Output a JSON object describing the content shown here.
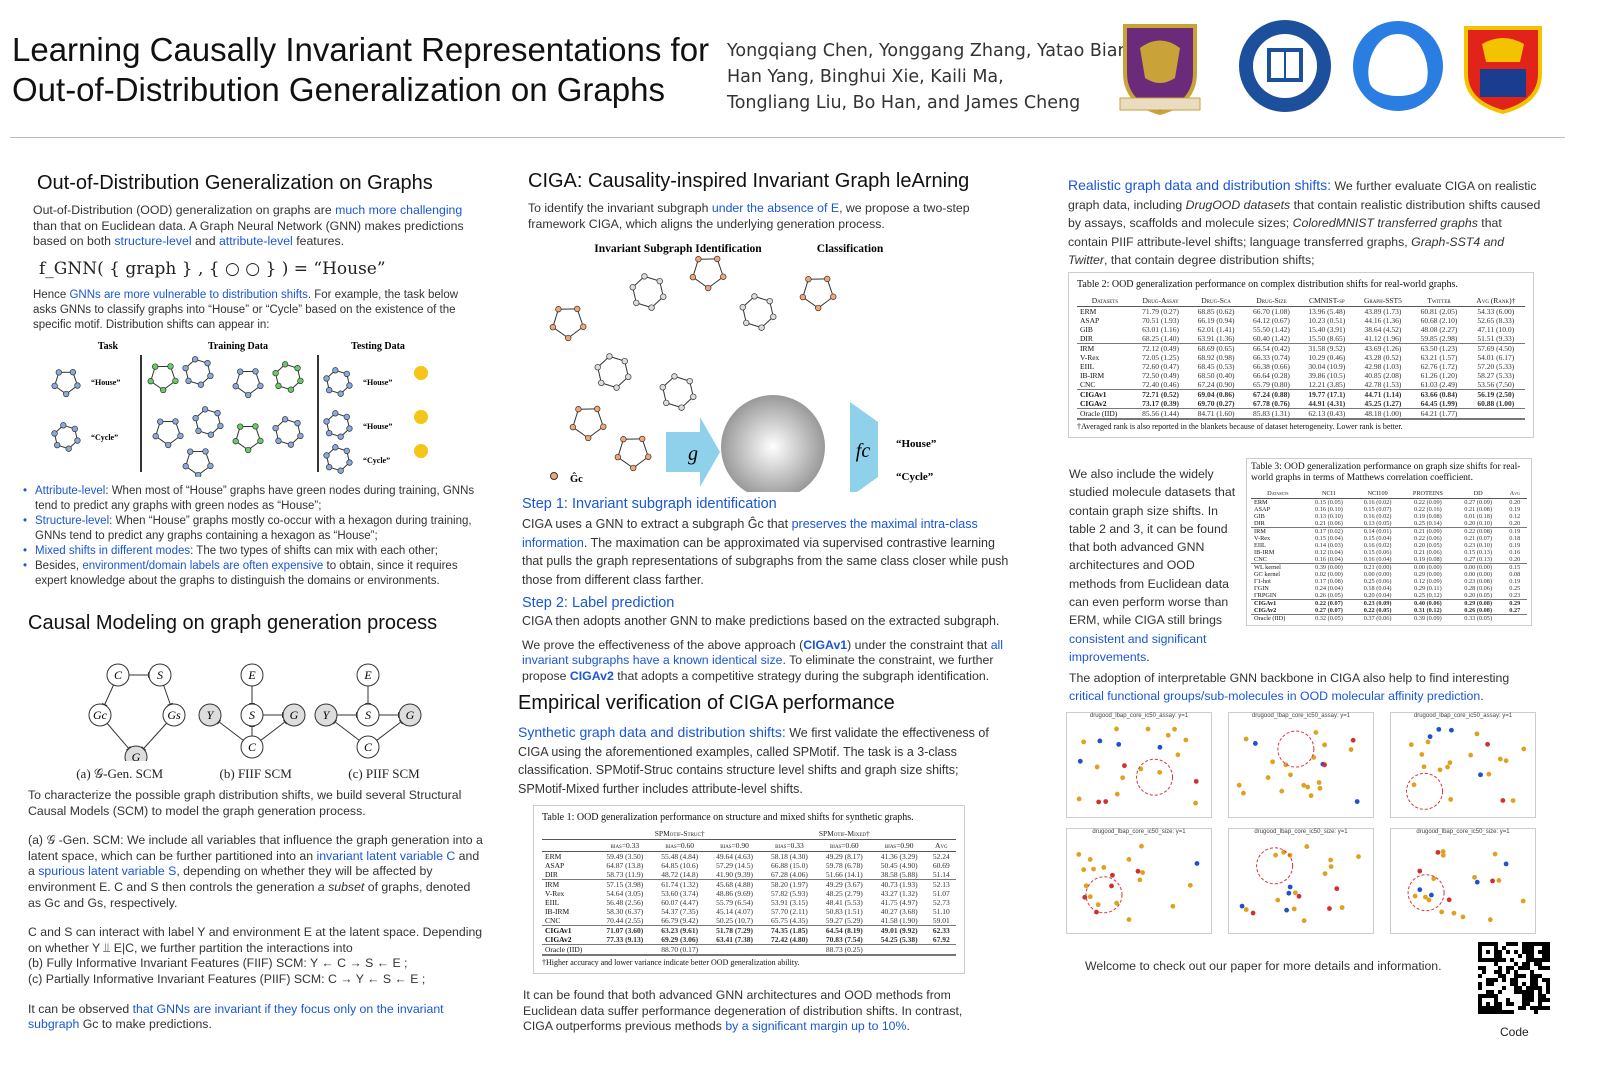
{
  "header": {
    "title_lines": [
      "Learning Causally Invariant Representations for",
      "Out-of-Distribution Generalization on Graphs"
    ],
    "author_lines": [
      "Yongqiang Chen, Yonggang Zhang, Yatao Bian,",
      "Han Yang, Binghui Xie, Kaili Ma,",
      "Tongliang Liu, Bo Han, and James Cheng"
    ],
    "logos": [
      "CUHK crest",
      "Hong Kong Baptist University seal",
      "Tencent AI Lab",
      "University of Sydney crest"
    ]
  },
  "colors": {
    "accent": "#1a56d6",
    "arrow": "#8fd0ea"
  },
  "ood": {
    "heading": "Out-of-Distribution Generalization on Graphs",
    "p1": [
      {
        "t": "Out-of-Distribution (OOD) generalization on graphs are "
      },
      {
        "t": "much more challenging",
        "c": "blue"
      },
      {
        "t": " than that on Euclidean data. A Graph Neural Network (GNN) makes predictions based on both "
      },
      {
        "t": "structure-level",
        "c": "blue"
      },
      {
        "t": " and "
      },
      {
        "t": "attribute-level",
        "c": "blue"
      },
      {
        "t": " features."
      }
    ],
    "formula": "f_GNN( { graph } , { ○ ○ } )   =   “House”",
    "p2": [
      {
        "t": "Hence "
      },
      {
        "t": "GNNs are more vulnerable to distribution shifts",
        "c": "blue"
      },
      {
        "t": ". For example, the task below asks GNNs to classify graphs into “House” or “Cycle” based on the existence of the specific motif. Distribution shifts can appear in:"
      }
    ],
    "fig_headers": [
      "Task",
      "Training Data",
      "Testing Data"
    ],
    "fig_labels": [
      "“House”",
      "“Cycle”",
      "“House”",
      "“House”",
      "“Cycle”"
    ],
    "bullets": [
      [
        {
          "t": "Attribute-level",
          "c": "blue"
        },
        {
          "t": ": When most of “House” graphs have green nodes during training, GNNs tend to predict any graphs with green nodes as “House”;"
        }
      ],
      [
        {
          "t": "Structure-level",
          "c": "blue"
        },
        {
          "t": ": When “House” graphs mostly co-occur with a hexagon during training, GNNs tend to predict any graphs containing a hexagon as “House”;"
        }
      ],
      [
        {
          "t": "Mixed shifts in different modes",
          "c": "blue"
        },
        {
          "t": ": The two types of shifts can mix with each other;"
        }
      ],
      [
        {
          "t": "Besides, "
        },
        {
          "t": "environment/domain labels are often expensive",
          "c": "blue"
        },
        {
          "t": " to obtain, since it requires expert knowledge about the graphs to distinguish the domains or environments."
        }
      ]
    ]
  },
  "causal": {
    "heading": "Causal Modeling on graph generation process",
    "scm_captions": [
      "(a) 𝒢-Gen. SCM",
      "(b) FIIF SCM",
      "(c) PIIF SCM"
    ],
    "p1": [
      {
        "t": "To characterize the possible graph distribution shifts, we build several Structural Causal Models (SCM) to model the graph generation process."
      }
    ],
    "p2": [
      {
        "t": "(a) 𝒢 -Gen. SCM: We include all variables that influence the graph generation into a latent space, which can be further partitioned into an "
      },
      {
        "t": "invariant latent variable C",
        "c": "blue"
      },
      {
        "t": " and a "
      },
      {
        "t": "spurious latent variable S",
        "c": "blue"
      },
      {
        "t": ", depending on whether they will be affected by environment E. C and S then controls the generation "
      },
      {
        "t": "a subset",
        "c": "it"
      },
      {
        "t": " of graphs, denoted as Gc and Gs, respectively."
      }
    ],
    "p3": [
      {
        "t": "C and S can interact with label Y and environment E at the latent space. Depending on whether Y ⫫ E|C, we further partition the interactions into"
      }
    ],
    "p4": [
      {
        "t": "(b)  Fully Informative Invariant Features (FIIF) SCM:  Y ← C → S ← E ;"
      }
    ],
    "p5": [
      {
        "t": "(c)  Partially Informative Invariant Features (PIIF) SCM:  C → Y ← S ← E ;"
      }
    ],
    "p6": [
      {
        "t": "It can be observed "
      },
      {
        "t": "that GNNs are invariant if they focus only on the invariant subgraph",
        "c": "blue"
      },
      {
        "t": " Gc to make predictions."
      }
    ]
  },
  "ciga": {
    "heading": "CIGA: Causality-inspired Invariant Graph leArning",
    "p1": [
      {
        "t": "To identify the invariant subgraph "
      },
      {
        "t": "under the absence of E",
        "c": "blue"
      },
      {
        "t": ", we propose a two-step framework CIGA, which aligns the underlying generation process."
      }
    ],
    "fig_headers": [
      "Invariant Subgraph Identification",
      "Classification"
    ],
    "fig_labels": {
      "g": "g",
      "fc": "fc",
      "house": "“House”",
      "cycle": "“Cycle”",
      "legend": [
        "Ĝc",
        "House",
        "Cycle"
      ]
    },
    "step1": "Step 1: Invariant subgraph identification",
    "p2": [
      {
        "t": "CIGA uses a GNN to extract a subgraph Ĝc that "
      },
      {
        "t": "preserves the maximal intra-class information",
        "c": "blue"
      },
      {
        "t": ".  The maximation can be approximated via supervised contrastive learning that pulls the graph representations of subgraphs from the same class closer while push those from different class farther."
      }
    ],
    "step2": "Step 2: Label prediction",
    "p3": [
      {
        "t": "CIGA then adopts another GNN to make predictions based on the extracted subgraph."
      }
    ],
    "p4": [
      {
        "t": "We prove the effectiveness of the above approach ("
      },
      {
        "t": "CIGAv1",
        "c": "blue b"
      },
      {
        "t": ") under the constraint that "
      },
      {
        "t": "all invariant subgraphs have a known identical size",
        "c": "blue"
      },
      {
        "t": ". To eliminate the constraint, we further propose "
      },
      {
        "t": "CIGAv2",
        "c": "blue b"
      },
      {
        "t": " that adopts a competitive strategy during the subgraph identification."
      }
    ]
  },
  "emp": {
    "heading": "Empirical verification of CIGA performance",
    "p1": [
      {
        "t": "Synthetic graph data and distribution shifts:",
        "c": "blue big"
      },
      {
        "t": " We first validate the effectiveness of CIGA using the aforementioned examples, called SPMotif. The task is a 3-class classification. SPMotif-Struc contains structure level shifts and graph size shifts; SPMotif-Mixed further includes attribute-level shifts."
      }
    ],
    "p2": [
      {
        "t": "It can be found that both advanced GNN architectures and OOD methods from Euclidean data suffer performance degeneration of distribution shifts. In contrast, CIGA outperforms previous methods "
      },
      {
        "t": "by a significant margin up to 10%",
        "c": "blue"
      },
      {
        "t": "."
      }
    ]
  },
  "table1": {
    "caption": "Table 1: OOD generalization performance on structure and mixed shifts for synthetic graphs.",
    "groups": [
      "SPMotif-Struc†",
      "SPMotif-Mixed†"
    ],
    "headers": [
      "",
      "bias=0.33",
      "bias=0.60",
      "bias=0.90",
      "bias=0.33",
      "bias=0.60",
      "bias=0.90",
      "Avg"
    ],
    "rows": [
      [
        "ERM",
        "59.49 (3.50)",
        "55.48 (4.84)",
        "49.64 (4.63)",
        "58.18 (4.30)",
        "49.29 (8.17)",
        "41.36 (3.29)",
        "52.24"
      ],
      [
        "ASAP",
        "64.87 (13.8)",
        "64.85 (10.6)",
        "57.29 (14.5)",
        "66.88 (15.0)",
        "59.78 (6.78)",
        "50.45 (4.90)",
        "60.69"
      ],
      [
        "DIR",
        "58.73 (11.9)",
        "48.72 (14.8)",
        "41.90 (9.39)",
        "67.28 (4.06)",
        "51.66 (14.1)",
        "38.58 (5.88)",
        "51.14"
      ],
      [
        "IRM",
        "57.15 (3.98)",
        "61.74 (1.32)",
        "45.68 (4.88)",
        "58.20 (1.97)",
        "49.29 (3.67)",
        "40.73 (1.93)",
        "52.13"
      ],
      [
        "V-Rex",
        "54.64 (3.05)",
        "53.60 (3.74)",
        "48.86 (9.69)",
        "57.82 (5.93)",
        "48.25 (2.79)",
        "43.27 (1.32)",
        "51.07"
      ],
      [
        "EIIL",
        "56.48 (2.56)",
        "60.07 (4.47)",
        "55.79 (6.54)",
        "53.91 (3.15)",
        "48.41 (5.53)",
        "41.75 (4.97)",
        "52.73"
      ],
      [
        "IB-IRM",
        "58.30 (6.37)",
        "54.37 (7.35)",
        "45.14 (4.07)",
        "57.70 (2.11)",
        "50.83 (1.51)",
        "40.27 (3.68)",
        "51.10"
      ],
      [
        "CNC",
        "70.44 (2.55)",
        "66.79 (9.42)",
        "50.25 (10.7)",
        "65.75 (4.35)",
        "59.27 (5.29)",
        "41.58 (1.90)",
        "59.01"
      ],
      [
        "CIGAv1",
        "71.07 (3.60)",
        "63.23 (9.61)",
        "51.78 (7.29)",
        "74.35 (1.85)",
        "64.54 (8.19)",
        "49.01 (9.92)",
        "62.33"
      ],
      [
        "CIGAv2",
        "77.33 (9.13)",
        "69.29 (3.06)",
        "63.41 (7.38)",
        "72.42 (4.80)",
        "70.83 (7.54)",
        "54.25 (5.38)",
        "67.92"
      ],
      [
        "Oracle (IID)",
        "",
        "88.70 (0.17)",
        "",
        "",
        "88.73 (0.25)",
        "",
        ""
      ]
    ],
    "seps": [
      3,
      8,
      10
    ],
    "note": "†Higher accuracy and lower variance indicate better OOD generalization ability."
  },
  "real": {
    "p1": [
      {
        "t": "Realistic graph data and distribution shifts:",
        "c": "blue big"
      },
      {
        "t": " We further evaluate CIGA on realistic graph data, including "
      },
      {
        "t": "DrugOOD datasets",
        "c": "it"
      },
      {
        "t": " that contain realistic distribution shifts caused by assays, scaffolds and molecule sizes; "
      },
      {
        "t": "ColoredMNIST transferred graphs",
        "c": "it"
      },
      {
        "t": " that contain PIIF attribute-level shifts; language transferred graphs, "
      },
      {
        "t": "Graph-SST4 and Twitter",
        "c": "it"
      },
      {
        "t": ",  that contain degree distribution shifts;"
      }
    ],
    "p2": [
      {
        "t": "We also include the widely studied molecule datasets that contain graph size shifts. In table 2 and 3, it can be found that both advanced GNN architectures and OOD methods from Euclidean data can even perform worse than ERM, while CIGA still brings "
      },
      {
        "t": "consistent and significant improvements",
        "c": "blue"
      },
      {
        "t": "."
      }
    ],
    "p3": [
      {
        "t": "The adoption of interpretable GNN backbone in CIGA also help to find interesting "
      },
      {
        "t": "critical functional groups/sub-molecules in OOD molecular affinity prediction",
        "c": "blue"
      },
      {
        "t": "."
      }
    ],
    "vis_titles": [
      "drugood_lbap_core_ic50_assay: y=1",
      "drugood_lbap_core_ic50_assay: y=1",
      "drugood_lbap_core_ic50_assay: y=1",
      "drugood_lbap_core_ic50_size: y=1",
      "drugood_lbap_core_ic50_size: y=1",
      "drugood_lbap_core_ic50_size: y=1"
    ],
    "welcome": "Welcome to check out our paper for more details and information.",
    "code_label": "Code"
  },
  "table2": {
    "caption": "Table 2: OOD generalization performance on complex distribution shifts for real-world graphs.",
    "headers": [
      "Datasets",
      "Drug-Assay",
      "Drug-Sca",
      "Drug-Size",
      "CMNIST-sp",
      "Graph-SST5",
      "Twitter",
      "Avg (Rank)†"
    ],
    "rows": [
      [
        "ERM",
        "71.79 (0.27)",
        "68.85 (0.62)",
        "66.70 (1.08)",
        "13.96 (5.48)",
        "43.89 (1.73)",
        "60.81 (2.05)",
        "54.33 (6.00)"
      ],
      [
        "ASAP",
        "70.51 (1.93)",
        "66.19 (0.94)",
        "64.12 (0.67)",
        "10.23 (0.51)",
        "44.16 (1.36)",
        "60.68 (2.10)",
        "52.65 (8.33)"
      ],
      [
        "GIB",
        "63.01 (1.16)",
        "62.01 (1.41)",
        "55.50 (1.42)",
        "15.40 (3.91)",
        "38.64 (4.52)",
        "48.08 (2.27)",
        "47.11 (10.0)"
      ],
      [
        "DIR",
        "68.25 (1.40)",
        "63.91 (1.36)",
        "60.40 (1.42)",
        "15.50 (8.65)",
        "41.12 (1.96)",
        "59.85 (2.98)",
        "51.51 (9.33)"
      ],
      [
        "IRM",
        "72.12 (0.49)",
        "68.69 (0.65)",
        "66.54 (0.42)",
        "31.58 (9.52)",
        "43.69 (1.26)",
        "63.50 (1.23)",
        "57.69 (4.50)"
      ],
      [
        "V-Rex",
        "72.05 (1.25)",
        "68.92 (0.98)",
        "66.33 (0.74)",
        "10.29 (0.46)",
        "43.28 (0.52)",
        "63.21 (1.57)",
        "54.01 (6.17)"
      ],
      [
        "EIIL",
        "72.60 (0.47)",
        "68.45 (0.53)",
        "66.38 (0.66)",
        "30.04 (10.9)",
        "42.98 (1.03)",
        "62.76 (1.72)",
        "57.20 (5.33)"
      ],
      [
        "IB-IRM",
        "72.50 (0.49)",
        "68.50 (0.40)",
        "66.64 (0.28)",
        "39.86 (10.5)",
        "40.85 (2.08)",
        "61.26 (1.20)",
        "58.27 (5.33)"
      ],
      [
        "CNC",
        "72.40 (0.46)",
        "67.24 (0.90)",
        "65.79 (0.80)",
        "12.21 (3.85)",
        "42.78 (1.53)",
        "61.03 (2.49)",
        "53.56 (7.50)"
      ],
      [
        "CIGAv1",
        "72.71 (0.52)",
        "69.04 (0.86)",
        "67.24 (0.88)",
        "19.77 (17.1)",
        "44.71 (1.14)",
        "63.66 (0.84)",
        "56.19 (2.50)"
      ],
      [
        "CIGAv2",
        "73.17 (0.39)",
        "69.70 (0.27)",
        "67.78 (0.76)",
        "44.91 (4.31)",
        "45.25 (1.27)",
        "64.45 (1.99)",
        "60.88 (1.00)"
      ],
      [
        "Oracle (IID)",
        "85.56 (1.44)",
        "84.71 (1.60)",
        "85.83 (1.31)",
        "62.13 (0.43)",
        "48.18 (1.00)",
        "64.21 (1.77)",
        ""
      ]
    ],
    "seps": [
      4,
      9,
      11
    ],
    "note": "†Averaged rank is also reported in the blankets because of dataset heterogeneity. Lower rank is better."
  },
  "table3": {
    "caption": "Table 3: OOD generalization performance on graph size shifts for real-world graphs in terms of Matthews correlation coefficient.",
    "headers": [
      "Datasets",
      "NCI1",
      "NCI109",
      "PROTEINS",
      "DD",
      "Avg"
    ],
    "rows": [
      [
        "ERM",
        "0.15 (0.05)",
        "0.16 (0.02)",
        "0.22 (0.09)",
        "0.27 (0.09)",
        "0.20"
      ],
      [
        "ASAP",
        "0.16 (0.10)",
        "0.15 (0.07)",
        "0.22 (0.16)",
        "0.21 (0.08)",
        "0.19"
      ],
      [
        "GIB",
        "0.13 (0.10)",
        "0.16 (0.02)",
        "0.19 (0.08)",
        "0.01 (0.18)",
        "0.12"
      ],
      [
        "DIR",
        "0.21 (0.06)",
        "0.13 (0.05)",
        "0.25 (0.14)",
        "0.20 (0.10)",
        "0.20"
      ],
      [
        "IRM",
        "0.17 (0.02)",
        "0.14 (0.01)",
        "0.21 (0.09)",
        "0.22 (0.08)",
        "0.19"
      ],
      [
        "V-Rex",
        "0.15 (0.04)",
        "0.15 (0.04)",
        "0.22 (0.06)",
        "0.21 (0.07)",
        "0.18"
      ],
      [
        "EIIL",
        "0.14 (0.03)",
        "0.16 (0.02)",
        "0.20 (0.05)",
        "0.23 (0.10)",
        "0.19"
      ],
      [
        "IB-IRM",
        "0.12 (0.04)",
        "0.15 (0.06)",
        "0.21 (0.06)",
        "0.15 (0.13)",
        "0.16"
      ],
      [
        "CNC",
        "0.16 (0.04)",
        "0.16 (0.04)",
        "0.19 (0.08)",
        "0.27 (0.13)",
        "0.20"
      ],
      [
        "WL kernel",
        "0.39 (0.00)",
        "0.21 (0.00)",
        "0.00 (0.00)",
        "0.00 (0.00)",
        "0.15"
      ],
      [
        "GC kernel",
        "0.02 (0.00)",
        "0.00 (0.00)",
        "0.29 (0.00)",
        "0.00 (0.00)",
        "0.08"
      ],
      [
        "Γ1-hot",
        "0.17 (0.08)",
        "0.25 (0.06)",
        "0.12 (0.09)",
        "0.23 (0.08)",
        "0.19"
      ],
      [
        "ΓGIN",
        "0.24 (0.04)",
        "0.18 (0.04)",
        "0.29 (0.11)",
        "0.28 (0.06)",
        "0.25"
      ],
      [
        "ΓRPGIN",
        "0.26 (0.05)",
        "0.20 (0.04)",
        "0.25 (0.12)",
        "0.20 (0.05)",
        "0.23"
      ],
      [
        "CIGAv1",
        "0.22 (0.07)",
        "0.23 (0.09)",
        "0.40 (0.06)",
        "0.29 (0.08)",
        "0.29"
      ],
      [
        "CIGAv2",
        "0.27 (0.07)",
        "0.22 (0.05)",
        "0.31 (0.12)",
        "0.26 (0.08)",
        "0.27"
      ],
      [
        "Oracle (IID)",
        "0.32 (0.05)",
        "0.37 (0.06)",
        "0.39 (0.09)",
        "0.33 (0.05)",
        ""
      ]
    ],
    "seps": [
      4,
      9,
      14,
      16
    ]
  }
}
